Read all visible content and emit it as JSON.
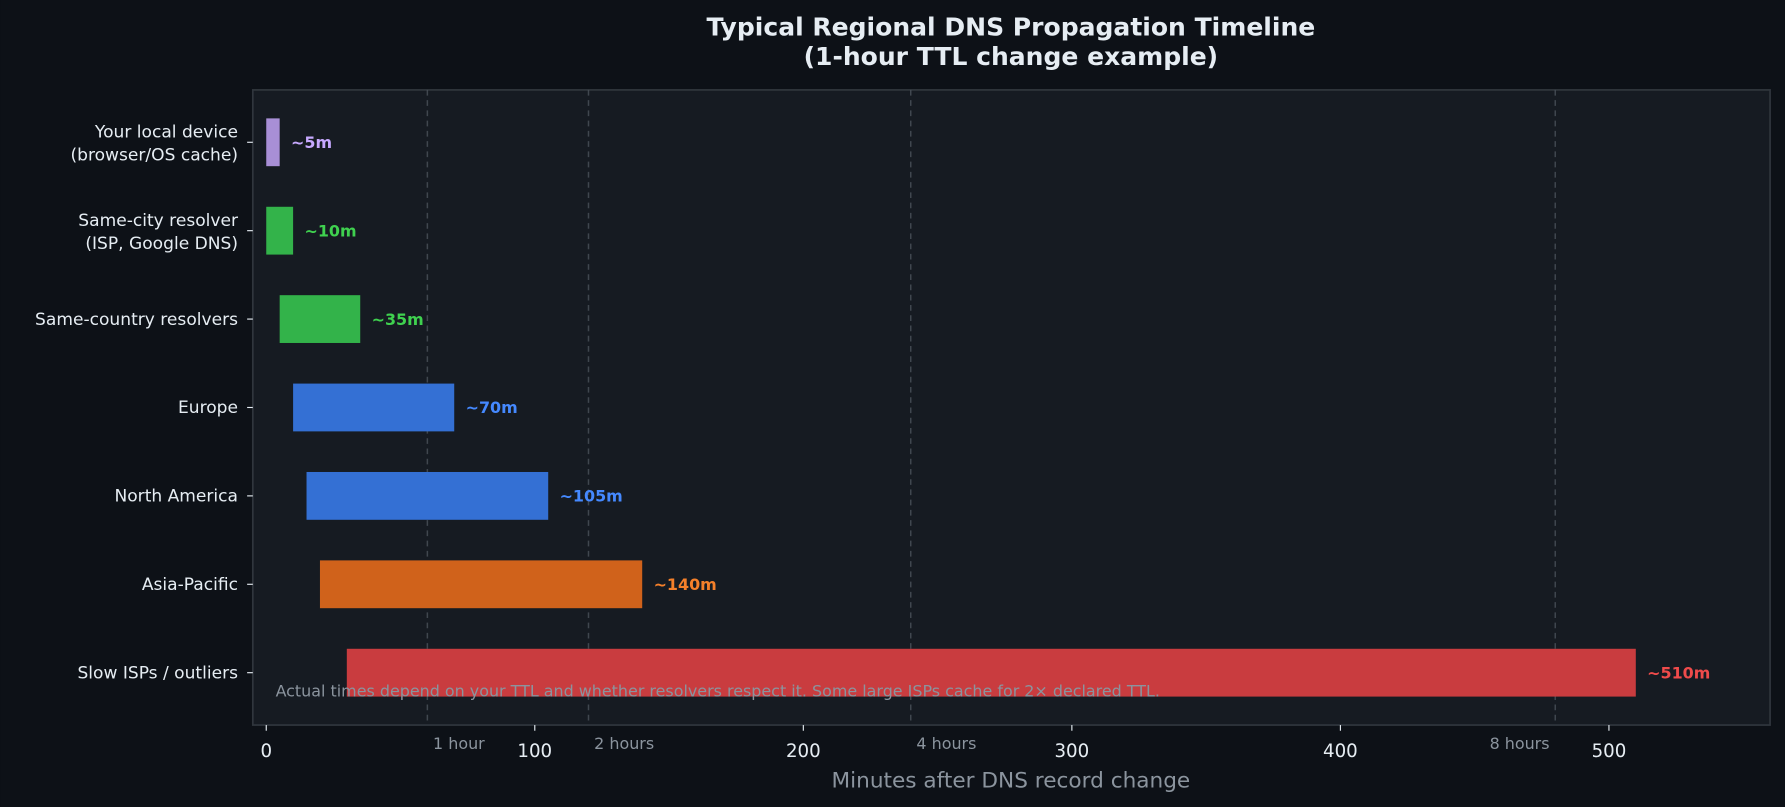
{
  "chart_data": {
    "type": "bar",
    "orientation": "horizontal",
    "title": "Typical Regional DNS Propagation Timeline",
    "subtitle": "(1-hour TTL change example)",
    "xlabel": "Minutes after DNS record change",
    "ylabel": "",
    "xlim": [
      -5,
      560
    ],
    "xticks": [
      0,
      100,
      200,
      300,
      400,
      500
    ],
    "grid": false,
    "categories": [
      [
        "Your local device",
        "(browser/OS cache)"
      ],
      [
        "Same-city resolver",
        "(ISP, Google DNS)"
      ],
      [
        "Same-country resolvers"
      ],
      [
        "Europe"
      ],
      [
        "North America"
      ],
      [
        "Asia-Pacific"
      ],
      [
        "Slow ISPs / outliers"
      ]
    ],
    "bars": [
      {
        "start": 0,
        "end": 5,
        "label": "~5m",
        "color": "#a88fd6",
        "label_color": "#c7a9ff"
      },
      {
        "start": 0,
        "end": 10,
        "label": "~10m",
        "color": "#33b34a",
        "label_color": "#3fd14f"
      },
      {
        "start": 5,
        "end": 35,
        "label": "~35m",
        "color": "#33b34a",
        "label_color": "#3fd14f"
      },
      {
        "start": 10,
        "end": 70,
        "label": "~70m",
        "color": "#3470d4",
        "label_color": "#4589ff"
      },
      {
        "start": 15,
        "end": 105,
        "label": "~105m",
        "color": "#3470d4",
        "label_color": "#4589ff"
      },
      {
        "start": 20,
        "end": 140,
        "label": "~140m",
        "color": "#d0621b",
        "label_color": "#f5802a"
      },
      {
        "start": 30,
        "end": 510,
        "label": "~510m",
        "color": "#c93c3f",
        "label_color": "#f04b4b"
      }
    ],
    "reference_lines": [
      {
        "x": 60,
        "label": "1 hour"
      },
      {
        "x": 120,
        "label": "2 hours"
      },
      {
        "x": 240,
        "label": "4 hours"
      },
      {
        "x": 480,
        "label": "8 hours"
      }
    ],
    "annotation": "Actual times depend on your TTL and whether resolvers respect it. Some large ISPs cache for 2× declared TTL.",
    "colors": {
      "background": "#0d1117",
      "plot_background": "#161b22",
      "axis": "#30363d",
      "text": "#e6edf3",
      "muted": "#8b949e"
    }
  }
}
